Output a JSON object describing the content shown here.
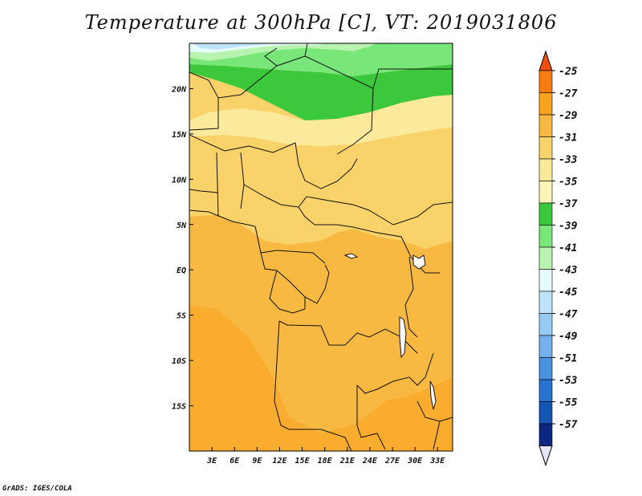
{
  "chart_data": {
    "type": "heatmap",
    "title": "Temperature at 300hPa [C], VT: 2019031806",
    "xlabel": "",
    "ylabel": "",
    "x_ticks": [
      "3E",
      "6E",
      "9E",
      "12E",
      "15E",
      "18E",
      "21E",
      "24E",
      "27E",
      "30E",
      "33E"
    ],
    "x_tick_values": [
      3,
      6,
      9,
      12,
      15,
      18,
      21,
      24,
      27,
      30,
      33
    ],
    "y_ticks": [
      "20N",
      "15N",
      "10N",
      "5N",
      "EQ",
      "5S",
      "10S",
      "15S"
    ],
    "y_tick_values": [
      20,
      15,
      10,
      5,
      0,
      -5,
      -10,
      -15
    ],
    "xlim": [
      0,
      35
    ],
    "ylim": [
      -20,
      25
    ],
    "units": "C",
    "colorbar": {
      "labels": [
        "-25",
        "-27",
        "-29",
        "-31",
        "-33",
        "-35",
        "-37",
        "-39",
        "-41",
        "-43",
        "-45",
        "-47",
        "-49",
        "-51",
        "-53",
        "-55",
        "-57"
      ],
      "colors": [
        "#f0500a",
        "#f77d10",
        "#f9a21e",
        "#f8b942",
        "#fad26a",
        "#fbea9c",
        "#fff4b8",
        "#3cc83c",
        "#78e678",
        "#b8f4b0",
        "#e6fcfc",
        "#bee4fc",
        "#96cbf5",
        "#73b0ec",
        "#4b92e1",
        "#2873cf",
        "#1556b2",
        "#0a2880",
        "#e6e6fa"
      ]
    },
    "field_bands": [
      {
        "lat_from": 25,
        "lat_to": 23,
        "value": -42
      },
      {
        "lat_from": 23,
        "lat_to": 21,
        "value": -40
      },
      {
        "lat_from": 21,
        "lat_to": 19,
        "value": -38
      },
      {
        "lat_from": 19,
        "lat_to": 17,
        "value": -36
      },
      {
        "lat_from": 17,
        "lat_to": 14,
        "value": -34
      },
      {
        "lat_from": 14,
        "lat_to": 5,
        "value": -32
      },
      {
        "lat_from": 5,
        "lat_to": -20,
        "value": -30
      }
    ]
  },
  "footer": {
    "credit": "GrADS: IGES/COLA"
  }
}
